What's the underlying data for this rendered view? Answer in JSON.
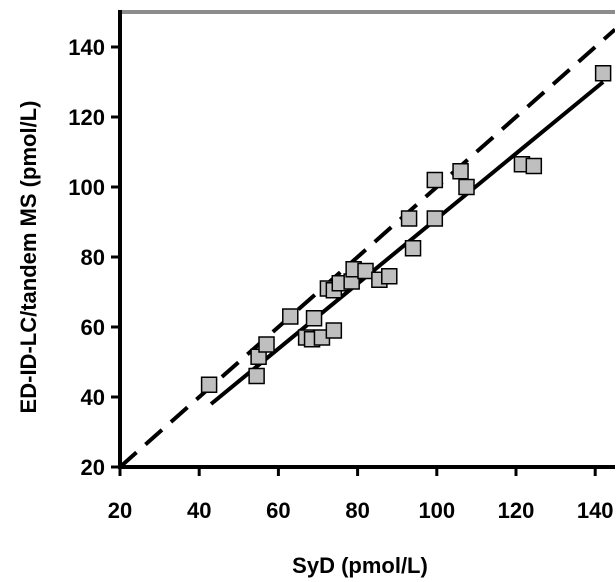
{
  "chart_data": {
    "type": "scatter",
    "title": "",
    "xlabel": "SyD (pmol/L)",
    "ylabel": "ED-ID-LC/tandem MS (pmol/L)",
    "xlim": [
      20,
      145
    ],
    "ylim": [
      20,
      150
    ],
    "xticks": [
      20,
      40,
      60,
      80,
      100,
      120,
      140
    ],
    "yticks": [
      20,
      40,
      60,
      80,
      100,
      120,
      140
    ],
    "grid": false,
    "legend": "none",
    "series": [
      {
        "marker": "square",
        "color": "#bfbfbf",
        "points": [
          {
            "x": 42.5,
            "y": 43.5
          },
          {
            "x": 54.5,
            "y": 46.0
          },
          {
            "x": 55.0,
            "y": 51.5
          },
          {
            "x": 57.0,
            "y": 55.0
          },
          {
            "x": 63.0,
            "y": 63.0
          },
          {
            "x": 67.0,
            "y": 57.0
          },
          {
            "x": 68.5,
            "y": 56.5
          },
          {
            "x": 69.0,
            "y": 62.5
          },
          {
            "x": 71.0,
            "y": 57.0
          },
          {
            "x": 72.5,
            "y": 71.0
          },
          {
            "x": 74.0,
            "y": 59.0
          },
          {
            "x": 74.0,
            "y": 70.5
          },
          {
            "x": 75.5,
            "y": 72.5
          },
          {
            "x": 78.5,
            "y": 73.0
          },
          {
            "x": 79.0,
            "y": 76.5
          },
          {
            "x": 82.0,
            "y": 76.0
          },
          {
            "x": 85.5,
            "y": 73.5
          },
          {
            "x": 88.0,
            "y": 74.5
          },
          {
            "x": 93.0,
            "y": 91.0
          },
          {
            "x": 94.0,
            "y": 82.5
          },
          {
            "x": 99.5,
            "y": 91.0
          },
          {
            "x": 99.5,
            "y": 102.0
          },
          {
            "x": 106.0,
            "y": 104.5
          },
          {
            "x": 107.5,
            "y": 100.0
          },
          {
            "x": 121.5,
            "y": 106.5
          },
          {
            "x": 124.5,
            "y": 106.0
          },
          {
            "x": 142.0,
            "y": 132.5
          }
        ]
      }
    ],
    "lines": [
      {
        "kind": "identity",
        "style": "dashed",
        "color": "#000000",
        "x1": 20,
        "y1": 20,
        "x2": 145,
        "y2": 145
      },
      {
        "kind": "regression",
        "style": "solid",
        "color": "#000000",
        "x1": 43,
        "y1": 38,
        "x2": 142,
        "y2": 130
      }
    ]
  }
}
